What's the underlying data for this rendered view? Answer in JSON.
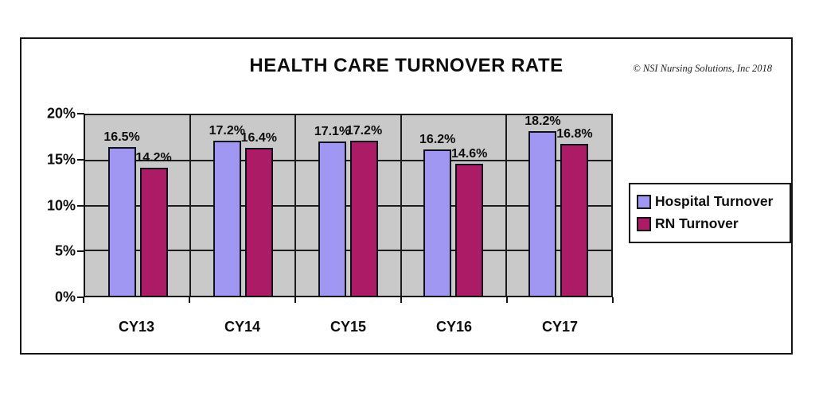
{
  "header": {
    "title": "HEALTH CARE TURNOVER RATE",
    "copyright": "© NSI Nursing Solutions, Inc 2018"
  },
  "colors": {
    "hospital_bar": "#A097F2",
    "rn_bar": "#AC1C66",
    "plot_background": "#C9C9C9",
    "gridline": "#1C1C1C",
    "bar_outline": "#10101C",
    "text": "#0D0D0D"
  },
  "legend": {
    "items": [
      {
        "label": "Hospital Turnover",
        "color": "#A097F2"
      },
      {
        "label": "RN Turnover",
        "color": "#AC1C66"
      }
    ]
  },
  "chart_data": {
    "type": "bar",
    "title": "HEALTH CARE TURNOVER RATE",
    "categories": [
      "CY13",
      "CY14",
      "CY15",
      "CY16",
      "CY17"
    ],
    "series": [
      {
        "name": "Hospital Turnover",
        "color": "#A097F2",
        "values": [
          16.5,
          17.2,
          17.1,
          16.2,
          18.2
        ],
        "labels": [
          "16.5%",
          "17.2%",
          "17.1%",
          "16.2%",
          "18.2%"
        ]
      },
      {
        "name": "RN Turnover",
        "color": "#AC1C66",
        "values": [
          14.2,
          16.4,
          17.2,
          14.6,
          16.8
        ],
        "labels": [
          "14.2%",
          "16.4%",
          "17.2%",
          "14.6%",
          "16.8%"
        ]
      }
    ],
    "xlabel": "",
    "ylabel": "",
    "ylim": [
      0,
      20
    ],
    "yticks": [
      0,
      5,
      10,
      15,
      20
    ],
    "ytick_labels": [
      "0%",
      "5%",
      "10%",
      "15%",
      "20%"
    ],
    "grid": true,
    "legend_position": "right"
  }
}
